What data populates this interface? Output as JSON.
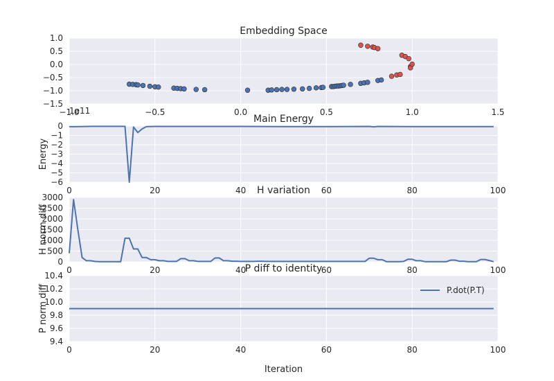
{
  "chart_data": [
    {
      "type": "scatter",
      "title": "Embedding Space",
      "xlim": [
        -1.0,
        1.5
      ],
      "ylim": [
        -1.5,
        1.0
      ],
      "xticks": [
        "−1.0",
        "−0.5",
        "0.0",
        "0.5",
        "1.0",
        "1.5"
      ],
      "yticks": [
        "−1.5",
        "−1.0",
        "−0.5",
        "0.0",
        "0.5",
        "1.0"
      ],
      "grid": true,
      "series": [
        {
          "color": "#4c72b0",
          "points": [
            [
              -0.65,
              -0.75
            ],
            [
              -0.63,
              -0.76
            ],
            [
              -0.61,
              -0.77
            ],
            [
              -0.6,
              -0.78
            ],
            [
              -0.57,
              -0.8
            ],
            [
              -0.53,
              -0.83
            ],
            [
              -0.5,
              -0.85
            ],
            [
              -0.48,
              -0.86
            ],
            [
              -0.39,
              -0.9
            ],
            [
              -0.37,
              -0.91
            ],
            [
              -0.35,
              -0.92
            ],
            [
              -0.33,
              -0.93
            ],
            [
              -0.26,
              -0.95
            ],
            [
              -0.21,
              -0.96
            ],
            [
              0.04,
              -0.98
            ],
            [
              0.16,
              -0.98
            ],
            [
              0.18,
              -0.97
            ],
            [
              0.21,
              -0.96
            ],
            [
              0.24,
              -0.95
            ],
            [
              0.27,
              -0.95
            ],
            [
              0.31,
              -0.94
            ],
            [
              0.36,
              -0.93
            ],
            [
              0.4,
              -0.91
            ],
            [
              0.44,
              -0.89
            ],
            [
              0.47,
              -0.88
            ],
            [
              0.48,
              -0.87
            ],
            [
              0.53,
              -0.84
            ],
            [
              0.54,
              -0.84
            ],
            [
              0.55,
              -0.83
            ],
            [
              0.56,
              -0.82
            ],
            [
              0.57,
              -0.82
            ],
            [
              0.58,
              -0.81
            ],
            [
              0.59,
              -0.8
            ],
            [
              0.6,
              -0.79
            ],
            [
              0.64,
              -0.76
            ],
            [
              0.7,
              -0.72
            ],
            [
              0.72,
              -0.7
            ],
            [
              0.74,
              -0.68
            ],
            [
              0.8,
              -0.61
            ],
            [
              0.82,
              -0.59
            ]
          ]
        },
        {
          "color": "#d9534f",
          "points": [
            [
              0.7,
              0.73
            ],
            [
              0.74,
              0.69
            ],
            [
              0.77,
              0.66
            ],
            [
              0.78,
              0.64
            ],
            [
              0.8,
              0.6
            ],
            [
              0.88,
              -0.45
            ],
            [
              0.91,
              -0.4
            ],
            [
              0.93,
              -0.38
            ],
            [
              0.94,
              0.35
            ],
            [
              0.96,
              0.3
            ],
            [
              0.98,
              0.22
            ],
            [
              0.99,
              -0.08
            ],
            [
              0.99,
              -0.13
            ],
            [
              1.0,
              0.01
            ]
          ]
        }
      ]
    },
    {
      "type": "line",
      "title": "Main Energy",
      "ylabel": "Energy",
      "offset_text": "1e11",
      "xlim": [
        0,
        100
      ],
      "ylim": [
        -6.0,
        0.0
      ],
      "xticks": [
        "0",
        "20",
        "40",
        "60",
        "80",
        "100"
      ],
      "yticks": [
        "−6",
        "−5",
        "−4",
        "−3",
        "−2",
        "−1",
        "0"
      ],
      "grid": true,
      "series": [
        {
          "color": "#4c72b0",
          "points": [
            [
              0,
              -0.05
            ],
            [
              1,
              -0.07
            ],
            [
              2,
              -0.05
            ],
            [
              5,
              -0.03
            ],
            [
              10,
              -0.03
            ],
            [
              13,
              -0.03
            ],
            [
              14,
              -6.0
            ],
            [
              15,
              -0.1
            ],
            [
              16,
              -0.7
            ],
            [
              17,
              -0.3
            ],
            [
              18,
              -0.05
            ],
            [
              20,
              -0.04
            ],
            [
              30,
              -0.04
            ],
            [
              40,
              -0.04
            ],
            [
              50,
              -0.05
            ],
            [
              60,
              -0.05
            ],
            [
              70,
              -0.04
            ],
            [
              71,
              -0.08
            ],
            [
              72,
              -0.04
            ],
            [
              80,
              -0.05
            ],
            [
              90,
              -0.05
            ],
            [
              99,
              -0.05
            ]
          ]
        }
      ]
    },
    {
      "type": "line",
      "title": "H variation",
      "ylabel": "H norm diff",
      "xlim": [
        0,
        100
      ],
      "ylim": [
        0,
        3000
      ],
      "xticks": [
        "0",
        "20",
        "40",
        "60",
        "80",
        "100"
      ],
      "yticks": [
        "0",
        "500",
        "1000",
        "1500",
        "2000",
        "2500",
        "3000"
      ],
      "grid": true,
      "series": [
        {
          "color": "#4c72b0",
          "points": [
            [
              0,
              400
            ],
            [
              1,
              2900
            ],
            [
              2,
              1500
            ],
            [
              3,
              200
            ],
            [
              4,
              50
            ],
            [
              5,
              50
            ],
            [
              6,
              20
            ],
            [
              7,
              10
            ],
            [
              8,
              10
            ],
            [
              9,
              5
            ],
            [
              10,
              5
            ],
            [
              11,
              5
            ],
            [
              12,
              5
            ],
            [
              13,
              1100
            ],
            [
              14,
              1100
            ],
            [
              15,
              600
            ],
            [
              16,
              600
            ],
            [
              17,
              200
            ],
            [
              18,
              200
            ],
            [
              19,
              100
            ],
            [
              20,
              100
            ],
            [
              21,
              50
            ],
            [
              22,
              50
            ],
            [
              23,
              20
            ],
            [
              24,
              20
            ],
            [
              25,
              20
            ],
            [
              26,
              150
            ],
            [
              27,
              150
            ],
            [
              28,
              50
            ],
            [
              29,
              50
            ],
            [
              30,
              20
            ],
            [
              31,
              20
            ],
            [
              32,
              20
            ],
            [
              33,
              20
            ],
            [
              34,
              180
            ],
            [
              35,
              180
            ],
            [
              36,
              50
            ],
            [
              37,
              50
            ],
            [
              38,
              30
            ],
            [
              39,
              30
            ],
            [
              40,
              20
            ],
            [
              41,
              20
            ],
            [
              42,
              20
            ],
            [
              43,
              20
            ],
            [
              44,
              30
            ],
            [
              45,
              30
            ],
            [
              46,
              20
            ],
            [
              47,
              20
            ],
            [
              48,
              20
            ],
            [
              49,
              20
            ],
            [
              50,
              20
            ],
            [
              51,
              20
            ],
            [
              52,
              20
            ],
            [
              53,
              20
            ],
            [
              54,
              20
            ],
            [
              55,
              20
            ],
            [
              56,
              20
            ],
            [
              57,
              20
            ],
            [
              58,
              20
            ],
            [
              59,
              20
            ],
            [
              60,
              20
            ],
            [
              61,
              20
            ],
            [
              62,
              20
            ],
            [
              63,
              20
            ],
            [
              64,
              20
            ],
            [
              65,
              20
            ],
            [
              66,
              20
            ],
            [
              67,
              20
            ],
            [
              68,
              20
            ],
            [
              69,
              20
            ],
            [
              70,
              170
            ],
            [
              71,
              170
            ],
            [
              72,
              100
            ],
            [
              73,
              100
            ],
            [
              74,
              10
            ],
            [
              75,
              10
            ],
            [
              76,
              10
            ],
            [
              77,
              10
            ],
            [
              78,
              20
            ],
            [
              79,
              120
            ],
            [
              80,
              120
            ],
            [
              81,
              50
            ],
            [
              82,
              50
            ],
            [
              83,
              10
            ],
            [
              84,
              10
            ],
            [
              85,
              10
            ],
            [
              86,
              10
            ],
            [
              87,
              10
            ],
            [
              88,
              10
            ],
            [
              89,
              80
            ],
            [
              90,
              80
            ],
            [
              91,
              30
            ],
            [
              92,
              30
            ],
            [
              93,
              10
            ],
            [
              94,
              10
            ],
            [
              95,
              10
            ],
            [
              96,
              110
            ],
            [
              97,
              110
            ],
            [
              98,
              60
            ],
            [
              99,
              10
            ]
          ]
        }
      ]
    },
    {
      "type": "line",
      "title": "P diff to identity",
      "ylabel": "P norm diff",
      "xlabel": "Iteration",
      "xlim": [
        0,
        100
      ],
      "ylim": [
        9.4,
        10.4
      ],
      "xticks": [
        "0",
        "20",
        "40",
        "60",
        "80",
        "100"
      ],
      "yticks": [
        "9.4",
        "9.6",
        "9.8",
        "10.0",
        "10.2",
        "10.4"
      ],
      "grid": true,
      "legend": "upper-right",
      "series": [
        {
          "name": "P.dot(P.T)",
          "color": "#4c72b0",
          "points": [
            [
              0,
              9.9
            ],
            [
              99,
              9.9
            ]
          ]
        }
      ]
    }
  ]
}
